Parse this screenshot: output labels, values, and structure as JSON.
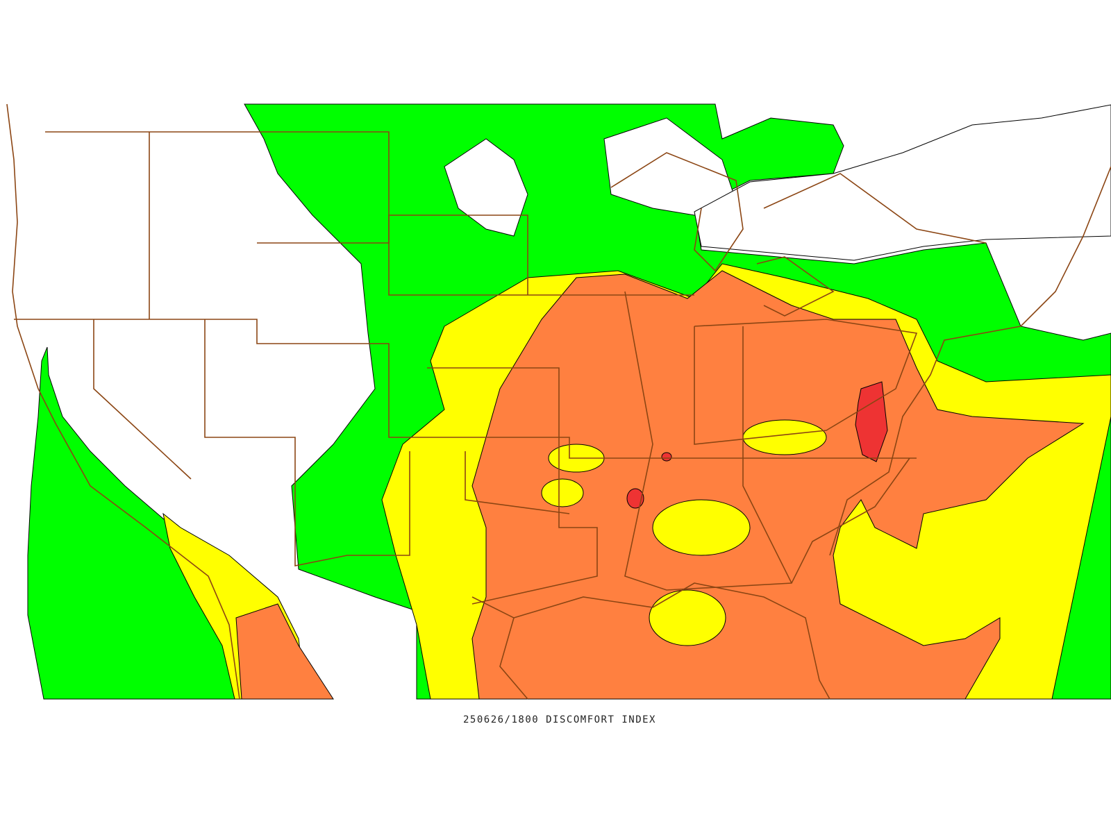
{
  "caption": "250626/1800 DISCOMFORT INDEX"
}
